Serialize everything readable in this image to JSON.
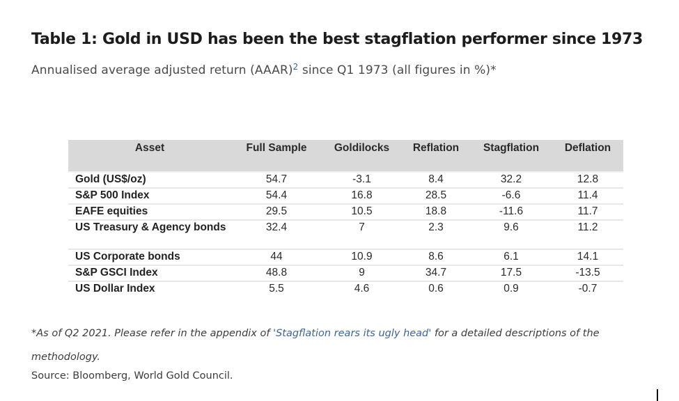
{
  "title": "Table 1: Gold in USD has been the best stagflation performer since 1973",
  "subtitle": {
    "before": "Annualised average adjusted return (AAAR)",
    "superscript": "2",
    "after": " since Q1 1973 (all figures in %)*"
  },
  "table": {
    "headers": [
      "Asset",
      "Full Sample",
      "Goldilocks",
      "Reflation",
      "Stagflation",
      "Deflation"
    ],
    "rows": [
      {
        "asset": "Gold (US$/oz)",
        "values": [
          "54.7",
          "-3.1",
          "8.4",
          "32.2",
          "12.8"
        ]
      },
      {
        "asset": "S&P 500 Index",
        "values": [
          "54.4",
          "16.8",
          "28.5",
          "-6.6",
          "11.4"
        ]
      },
      {
        "asset": "EAFE equities",
        "values": [
          "29.5",
          "10.5",
          "18.8",
          "-11.6",
          "11.7"
        ]
      },
      {
        "asset": "US Treasury & Agency bonds",
        "values": [
          "32.4",
          "7",
          "2.3",
          "9.6",
          "11.2"
        ]
      },
      {
        "asset": "US Corporate bonds",
        "values": [
          "44",
          "10.9",
          "8.6",
          "6.1",
          "14.1"
        ]
      },
      {
        "asset": "S&P GSCI Index",
        "values": [
          "48.8",
          "9",
          "34.7",
          "17.5",
          "-13.5"
        ]
      },
      {
        "asset": "US Dollar Index",
        "values": [
          "5.5",
          "4.6",
          "0.6",
          "0.9",
          "-0.7"
        ]
      }
    ]
  },
  "footnote": {
    "before": "*As of Q2 2021. Please refer in the appendix of ",
    "link_text": "'Stagflation rears its ugly head'",
    "after": " for a detailed descriptions of the methodology."
  },
  "source": "Source: Bloomberg, World Gold Council.",
  "colors": {
    "header_bg": "#d9d9d9",
    "link": "#3d6596",
    "row_divider": "#e6e8ee"
  }
}
